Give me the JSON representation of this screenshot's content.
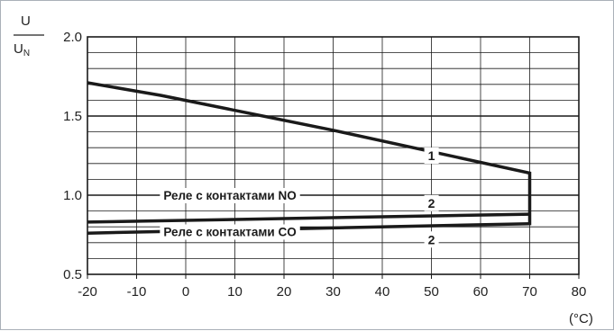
{
  "chart_data": {
    "type": "line",
    "xlabel": "(°C)",
    "ylabel": {
      "numerator": "U",
      "denominator": "U",
      "denominator_sub": "N"
    },
    "xlim": [
      -20,
      80
    ],
    "ylim": [
      0.5,
      2.0
    ],
    "x_ticks": [
      "-20",
      "-10",
      "0",
      "10",
      "20",
      "30",
      "40",
      "50",
      "60",
      "70",
      "80"
    ],
    "y_ticks": [
      "0.5",
      "1.0",
      "1.5",
      "2.0"
    ],
    "grid": {
      "x_step": 10,
      "y_minor_step": 0.1,
      "y_major_step": 0.5
    },
    "series": [
      {
        "marker": "1",
        "x": [
          -20,
          -5,
          30,
          70,
          70,
          70
        ],
        "y": [
          1.71,
          1.63,
          1.41,
          1.14,
          1.0,
          0.81
        ]
      },
      {
        "marker": "2",
        "x": [
          -20,
          70
        ],
        "y": [
          0.83,
          0.88
        ]
      },
      {
        "marker": "2",
        "x": [
          -20,
          70
        ],
        "y": [
          0.76,
          0.82
        ]
      }
    ],
    "annotations": [
      {
        "text": "1",
        "x": 50,
        "y": 1.25
      },
      {
        "text": "2",
        "x": 50,
        "y": 0.95
      },
      {
        "text": "2",
        "x": 50,
        "y": 0.72
      },
      {
        "text": "Реле с контактами NO",
        "x": 9,
        "y": 1.0
      },
      {
        "text": "Реле с контактами CO",
        "x": 9,
        "y": 0.77
      }
    ]
  }
}
